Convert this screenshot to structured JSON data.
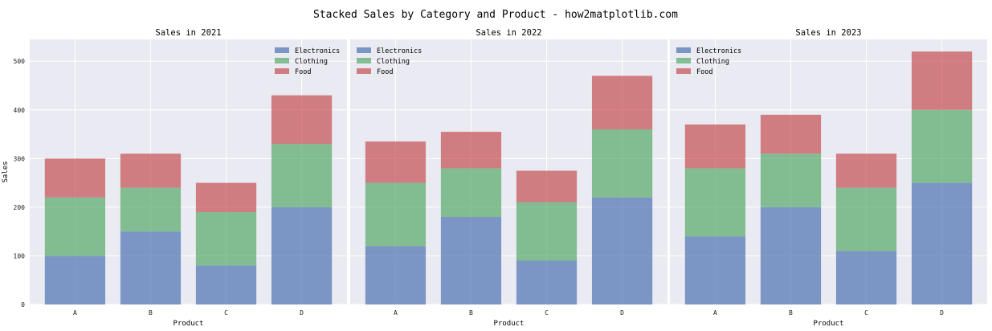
{
  "figure_title": "Stacked Sales by Category and Product - how2matplotlib.com",
  "colors": {
    "axes_bg": "#eaeaf2",
    "grid": "#ffffff",
    "Electronics": "#4c72b0",
    "Clothing": "#55a868",
    "Food": "#c44e52"
  },
  "chart_data": [
    {
      "type": "bar",
      "stacked": true,
      "title": "Sales in 2021",
      "xlabel": "Product",
      "ylabel": "Sales",
      "categories": [
        "A",
        "B",
        "C",
        "D"
      ],
      "ylim": [
        0,
        545
      ],
      "yticks": [
        0,
        100,
        200,
        300,
        400,
        500
      ],
      "grid": true,
      "legend": "top-right",
      "series": [
        {
          "name": "Electronics",
          "values": [
            100,
            150,
            80,
            200
          ]
        },
        {
          "name": "Clothing",
          "values": [
            120,
            90,
            110,
            130
          ]
        },
        {
          "name": "Food",
          "values": [
            80,
            70,
            60,
            100
          ]
        }
      ]
    },
    {
      "type": "bar",
      "stacked": true,
      "title": "Sales in 2022",
      "xlabel": "Product",
      "ylabel": "",
      "categories": [
        "A",
        "B",
        "C",
        "D"
      ],
      "ylim": [
        0,
        545
      ],
      "yticks": [
        0,
        100,
        200,
        300,
        400,
        500
      ],
      "grid": true,
      "legend": "top-left",
      "series": [
        {
          "name": "Electronics",
          "values": [
            120,
            180,
            90,
            220
          ]
        },
        {
          "name": "Clothing",
          "values": [
            130,
            100,
            120,
            140
          ]
        },
        {
          "name": "Food",
          "values": [
            85,
            75,
            65,
            110
          ]
        }
      ]
    },
    {
      "type": "bar",
      "stacked": true,
      "title": "Sales in 2023",
      "xlabel": "Product",
      "ylabel": "",
      "categories": [
        "A",
        "B",
        "C",
        "D"
      ],
      "ylim": [
        0,
        545
      ],
      "yticks": [
        0,
        100,
        200,
        300,
        400,
        500
      ],
      "grid": true,
      "legend": "top-left",
      "series": [
        {
          "name": "Electronics",
          "values": [
            140,
            200,
            110,
            250
          ]
        },
        {
          "name": "Clothing",
          "values": [
            140,
            110,
            130,
            150
          ]
        },
        {
          "name": "Food",
          "values": [
            90,
            80,
            70,
            120
          ]
        }
      ]
    }
  ]
}
